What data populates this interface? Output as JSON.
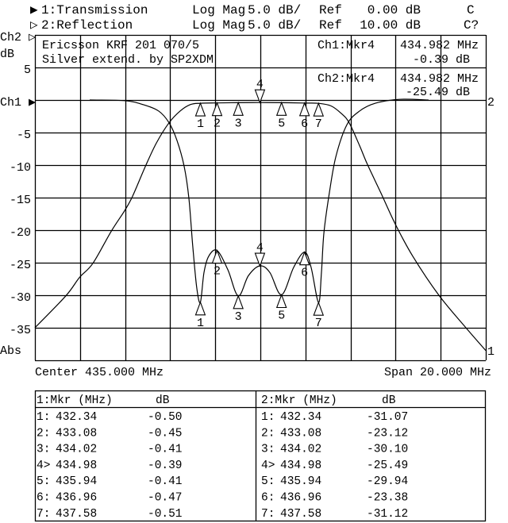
{
  "header": {
    "ch1": {
      "indicator": "▶",
      "name": "1:Transmission",
      "format": "Log Mag",
      "scale": "5.0 dB/",
      "ref_label": "Ref",
      "ref_value": "0.00 dB",
      "flag": "C"
    },
    "ch2": {
      "indicator": "▷",
      "name": "2:Reflection",
      "format": "Log Mag",
      "scale": "5.0 dB/",
      "ref_label": "Ref",
      "ref_value": "10.00 dB",
      "flag": "C?"
    }
  },
  "axis_labels": {
    "ch2_ref": "Ch2 ▷",
    "unit": "dB",
    "ch1_ref": "Ch1 ▶",
    "bottom": "Abs",
    "ticks": [
      "5",
      "-5",
      "-10",
      "-15",
      "-20",
      "-25",
      "-30",
      "-35"
    ],
    "right_ch1": "1",
    "right_ch2": "2",
    "center": "Center 435.000 MHz",
    "span": "Span 20.000 MHz"
  },
  "title_box": {
    "line1": "Ericsson KRF 201 070/5",
    "line2": "Silver extend. by SP2XDM"
  },
  "marker_readout": {
    "ch1": {
      "label": "Ch1:Mkr4",
      "freq": "434.982 MHz",
      "value": "-0.39 dB"
    },
    "ch2": {
      "label": "Ch2:Mkr4",
      "freq": "434.982 MHz",
      "value": "-25.49 dB"
    }
  },
  "marker_table": {
    "ch1": {
      "header_mkr": "1:Mkr (MHz)",
      "header_db": "dB",
      "rows": [
        {
          "id": "1:",
          "freq": "432.34",
          "db": "-0.50"
        },
        {
          "id": "2:",
          "freq": "433.08",
          "db": "-0.45"
        },
        {
          "id": "3:",
          "freq": "434.02",
          "db": "-0.41"
        },
        {
          "id": "4>",
          "freq": "434.98",
          "db": "-0.39"
        },
        {
          "id": "5:",
          "freq": "435.94",
          "db": "-0.41"
        },
        {
          "id": "6:",
          "freq": "436.96",
          "db": "-0.47"
        },
        {
          "id": "7:",
          "freq": "437.58",
          "db": "-0.51"
        }
      ]
    },
    "ch2": {
      "header_mkr": "2:Mkr (MHz)",
      "header_db": "dB",
      "rows": [
        {
          "id": "1:",
          "freq": "432.34",
          "db": "-31.07"
        },
        {
          "id": "2:",
          "freq": "433.08",
          "db": "-23.12"
        },
        {
          "id": "3:",
          "freq": "434.02",
          "db": "-30.10"
        },
        {
          "id": "4>",
          "freq": "434.98",
          "db": "-25.49"
        },
        {
          "id": "5:",
          "freq": "435.94",
          "db": "-29.94"
        },
        {
          "id": "6:",
          "freq": "436.96",
          "db": "-23.38"
        },
        {
          "id": "7:",
          "freq": "437.58",
          "db": "-31.12"
        }
      ]
    }
  },
  "chart_data": {
    "type": "line",
    "xlim": [
      425,
      445
    ],
    "ylim": [
      -40,
      10
    ],
    "x_divisions": 10,
    "y_divisions": 10,
    "grid": true,
    "colors": {
      "trace": "#000000",
      "background": "#ffffff"
    },
    "active_marker": 4,
    "series": [
      {
        "name": "1:Transmission",
        "points": [
          [
            425,
            -35
          ],
          [
            426.37,
            -30.1
          ],
          [
            426.97,
            -27.3
          ],
          [
            427.57,
            -25.1
          ],
          [
            428.38,
            -20.2
          ],
          [
            428.98,
            -17
          ],
          [
            429.33,
            -14.8
          ],
          [
            429.9,
            -10.2
          ],
          [
            430.39,
            -6.6
          ],
          [
            430.95,
            -3.5
          ],
          [
            431.44,
            -1.7
          ],
          [
            431.9,
            -0.7
          ],
          [
            432.34,
            -0.5
          ],
          [
            433.08,
            -0.45
          ],
          [
            434.02,
            -0.41
          ],
          [
            434.98,
            -0.39
          ],
          [
            435.94,
            -0.41
          ],
          [
            436.96,
            -0.47
          ],
          [
            437.58,
            -0.51
          ],
          [
            438.13,
            -0.9
          ],
          [
            438.6,
            -2.1
          ],
          [
            438.94,
            -3.5
          ],
          [
            439.4,
            -7
          ],
          [
            439.75,
            -9.9
          ],
          [
            440.35,
            -14.3
          ],
          [
            440.99,
            -19.1
          ],
          [
            441.76,
            -24
          ],
          [
            442.92,
            -30
          ],
          [
            444.12,
            -35
          ],
          [
            445,
            -38.5
          ]
        ],
        "markers": [
          [
            432.34,
            -0.5
          ],
          [
            433.08,
            -0.45
          ],
          [
            434.02,
            -0.41
          ],
          [
            434.98,
            -0.39
          ],
          [
            435.94,
            -0.41
          ],
          [
            436.96,
            -0.47
          ],
          [
            437.58,
            -0.51
          ]
        ]
      },
      {
        "name": "2:Reflection",
        "points": [
          [
            427.43,
            0
          ],
          [
            428.98,
            -0.1
          ],
          [
            429.79,
            -0.7
          ],
          [
            430.49,
            -1.7
          ],
          [
            430.95,
            -3.5
          ],
          [
            431.3,
            -6.2
          ],
          [
            431.62,
            -10.2
          ],
          [
            431.83,
            -15.1
          ],
          [
            432.0,
            -22.4
          ],
          [
            432.18,
            -28.9
          ],
          [
            432.34,
            -31.07
          ],
          [
            432.5,
            -26.5
          ],
          [
            432.71,
            -24
          ],
          [
            433.08,
            -23.12
          ],
          [
            433.56,
            -26.1
          ],
          [
            434.02,
            -30.1
          ],
          [
            434.47,
            -27
          ],
          [
            434.98,
            -25.49
          ],
          [
            435.42,
            -26.5
          ],
          [
            435.94,
            -29.94
          ],
          [
            436.48,
            -25.7
          ],
          [
            436.96,
            -23.38
          ],
          [
            437.25,
            -25.7
          ],
          [
            437.58,
            -31.12
          ],
          [
            437.71,
            -26.5
          ],
          [
            437.82,
            -20.4
          ],
          [
            438.06,
            -14.3
          ],
          [
            438.35,
            -8.7
          ],
          [
            438.84,
            -3.8
          ],
          [
            439.4,
            -1.7
          ],
          [
            440.1,
            -0.5
          ],
          [
            441.16,
            0.1
          ],
          [
            442.46,
            0
          ]
        ],
        "markers": [
          [
            432.34,
            -31.07
          ],
          [
            433.08,
            -23.12
          ],
          [
            434.02,
            -30.1
          ],
          [
            434.98,
            -25.49
          ],
          [
            435.94,
            -29.94
          ],
          [
            436.96,
            -23.38
          ],
          [
            437.58,
            -31.12
          ]
        ]
      }
    ]
  }
}
